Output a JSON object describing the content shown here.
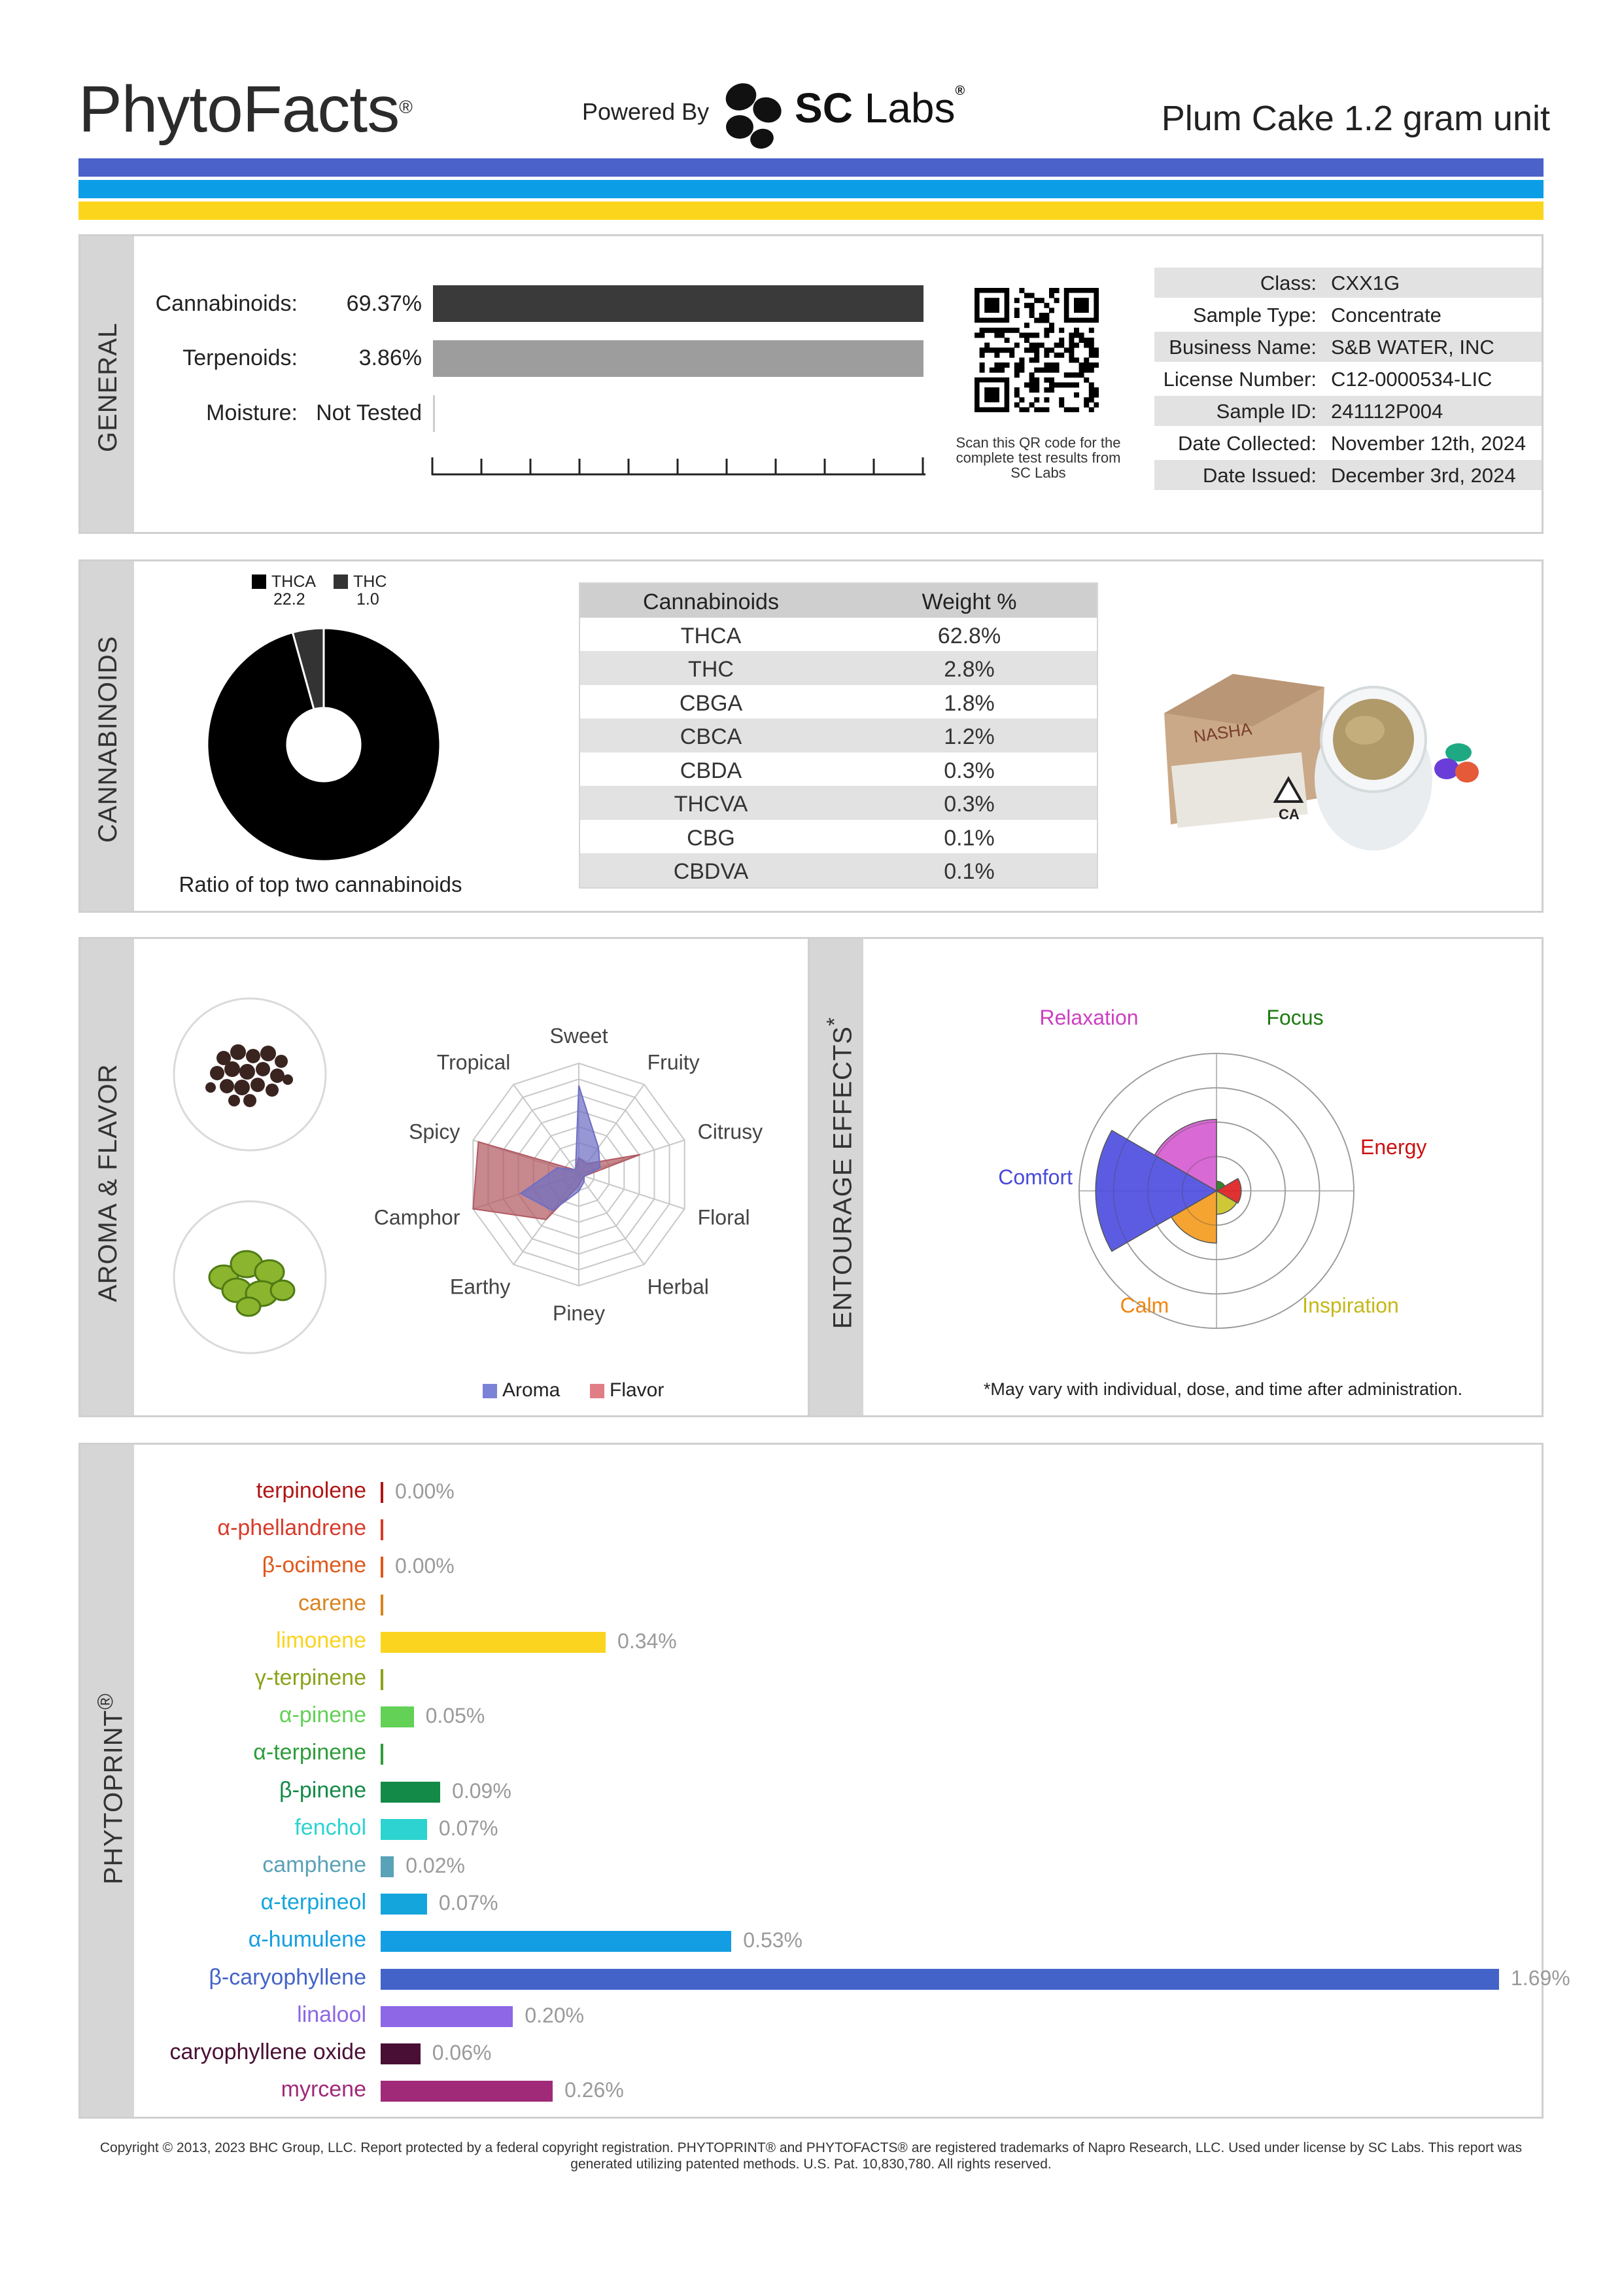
{
  "header": {
    "brand": "PhytoFacts",
    "brand_mark": "®",
    "powered_by": "Powered By",
    "partner_logo_text_bold": "SC",
    "partner_logo_text_light": "Labs",
    "partner_mark": "®",
    "product_title": "Plum Cake 1.2 gram unit",
    "stripe_colors": [
      "#4a62c9",
      "#0b9ee6",
      "#fbd51b"
    ]
  },
  "general": {
    "section_label": "GENERAL",
    "metrics": [
      {
        "label": "Cannabinoids:",
        "value": "69.37%",
        "fraction": 0.6937,
        "color": "#3a3a3a"
      },
      {
        "label": "Terpenoids:",
        "value": "3.86%",
        "fraction": 0.0386,
        "color": "#9d9d9d"
      },
      {
        "label": "Moisture:",
        "value": "Not Tested",
        "fraction": 0,
        "color": "#cccccc"
      }
    ],
    "qr_caption": "Scan this QR code for the complete test results from SC Labs",
    "details": [
      {
        "key": "Class:",
        "value": "CXX1G"
      },
      {
        "key": "Sample Type:",
        "value": "Concentrate"
      },
      {
        "key": "Business Name:",
        "value": "S&B WATER, INC"
      },
      {
        "key": "License Number:",
        "value": "C12-0000534-LIC"
      },
      {
        "key": "Sample ID:",
        "value": "241112P004"
      },
      {
        "key": "Date Collected:",
        "value": "November 12th, 2024"
      },
      {
        "key": "Date Issued:",
        "value": "December 3rd, 2024"
      }
    ]
  },
  "cannabinoids": {
    "section_label": "CANNABINOIDS",
    "ratio_caption": "Ratio of top two cannabinoids",
    "legend": [
      {
        "name": "THCA",
        "value": "22.2",
        "color": "#000000"
      },
      {
        "name": "THC",
        "value": "1.0",
        "color": "#333333"
      }
    ],
    "table_headers": [
      "Cannabinoids",
      "Weight %"
    ],
    "rows": [
      {
        "name": "THCA",
        "weight": "62.8%"
      },
      {
        "name": "THC",
        "weight": "2.8%"
      },
      {
        "name": "CBGA",
        "weight": "1.8%"
      },
      {
        "name": "CBCA",
        "weight": "1.2%"
      },
      {
        "name": "CBDA",
        "weight": "0.3%"
      },
      {
        "name": "THCVA",
        "weight": "0.3%"
      },
      {
        "name": "CBG",
        "weight": "0.1%"
      },
      {
        "name": "CBDVA",
        "weight": "0.1%"
      }
    ],
    "package_text": "NASHA",
    "package_badge": "CA"
  },
  "aroma": {
    "section_label": "AROMA & FLAVOR",
    "axes": [
      "Sweet",
      "Fruity",
      "Citrusy",
      "Floral",
      "Herbal",
      "Piney",
      "Earthy",
      "Camphor",
      "Spicy",
      "Tropical"
    ],
    "legend": [
      {
        "name": "Aroma",
        "color": "#7b83d6"
      },
      {
        "name": "Flavor",
        "color": "#e07e86"
      }
    ]
  },
  "entourage": {
    "section_label": "ENTOURAGE EFFECTS",
    "section_mark": "*",
    "effects": [
      {
        "name": "Relaxation",
        "color": "#cc3fc2"
      },
      {
        "name": "Focus",
        "color": "#1c7a10"
      },
      {
        "name": "Energy",
        "color": "#cc1010"
      },
      {
        "name": "Inspiration",
        "color": "#c4b818"
      },
      {
        "name": "Calm",
        "color": "#f08510"
      },
      {
        "name": "Comfort",
        "color": "#4a4ad8"
      }
    ],
    "footnote": "*May vary with individual, dose, and time after administration."
  },
  "phytoprint": {
    "section_label": "PHYTOPRINT",
    "section_mark": "®",
    "terpenes": [
      {
        "name": "terpinolene",
        "value": "0.00%",
        "amount": 0.0,
        "color": "#b01515"
      },
      {
        "name": "α-phellandrene",
        "value": "",
        "amount": 0.0,
        "color": "#d83b2a"
      },
      {
        "name": "β-ocimene",
        "value": "0.00%",
        "amount": 0.0,
        "color": "#e0581a"
      },
      {
        "name": "carene",
        "value": "",
        "amount": 0.0,
        "color": "#d9831f"
      },
      {
        "name": "limonene",
        "value": "0.34%",
        "amount": 0.34,
        "color": "#fad41e"
      },
      {
        "name": "γ-terpinene",
        "value": "",
        "amount": 0.0,
        "color": "#8aa31a"
      },
      {
        "name": "α-pinene",
        "value": "0.05%",
        "amount": 0.05,
        "color": "#62d155"
      },
      {
        "name": "α-terpinene",
        "value": "",
        "amount": 0.0,
        "color": "#2f9c3a"
      },
      {
        "name": "β-pinene",
        "value": "0.09%",
        "amount": 0.09,
        "color": "#138a47"
      },
      {
        "name": "fenchol",
        "value": "0.07%",
        "amount": 0.07,
        "color": "#2cd3d0"
      },
      {
        "name": "camphene",
        "value": "0.02%",
        "amount": 0.02,
        "color": "#5aa2b8"
      },
      {
        "name": "α-terpineol",
        "value": "0.07%",
        "amount": 0.07,
        "color": "#13a5dc"
      },
      {
        "name": "α-humulene",
        "value": "0.53%",
        "amount": 0.53,
        "color": "#139ee3"
      },
      {
        "name": "β-caryophyllene",
        "value": "1.69%",
        "amount": 1.69,
        "color": "#4463c9"
      },
      {
        "name": "linalool",
        "value": "0.20%",
        "amount": 0.2,
        "color": "#8d67e6"
      },
      {
        "name": "caryophyllene oxide",
        "value": "0.06%",
        "amount": 0.06,
        "color": "#4a0f35"
      },
      {
        "name": "myrcene",
        "value": "0.26%",
        "amount": 0.26,
        "color": "#a02a78"
      }
    ]
  },
  "footer": {
    "copyright": "Copyright © 2013, 2023 BHC Group, LLC. Report protected by a federal copyright registration. PHYTOPRINT® and PHYTOFACTS® are registered trademarks of Napro Research, LLC. Used under license by SC Labs. This report was generated utilizing patented methods. U.S. Pat. 10,830,780. All rights reserved."
  }
}
